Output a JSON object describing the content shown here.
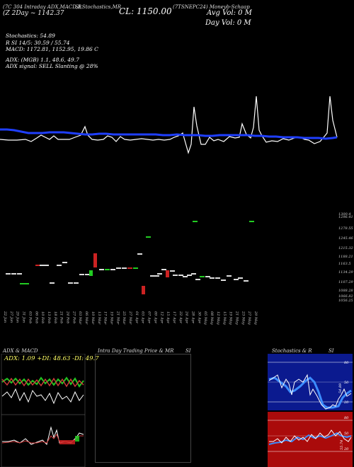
{
  "header": {
    "left_tags": "(7C 304 Intraday ADX,MACD,B",
    "mid_tags": "SI,Stochastics,MR",
    "right_tags": "(7TSNEPC24) Moneyb-Schaap",
    "chg": "(Z 2Day ~ 1142.37",
    "close_label": "CL: 1150.00",
    "avg_vol": "Avg Vol: 0   M",
    "day_vol": "Day Vol: 0   M"
  },
  "indicators": {
    "stochastics": "Stochastics: 54.89",
    "rsi": "R  SI 14/5: 30.59 / 55.74",
    "macd": "MACD: 1172.81,  1152.95,  19.86  C",
    "adx": "ADX:                    (MGB) 1.1,  48.6,  49.7",
    "signal": "ADX  signal: SELL  Slanting @ 28%"
  },
  "chart_data": [
    {
      "type": "line",
      "name": "main-volume-overview",
      "series": [
        {
          "name": "",
          "color": "#1f3fff",
          "values": [
            183,
            183,
            184,
            186,
            188,
            188,
            188,
            188,
            189,
            189,
            187,
            186,
            186,
            186,
            186,
            186,
            186,
            186,
            186,
            186,
            187,
            187,
            187,
            188,
            188,
            188,
            189,
            189,
            189,
            189,
            190,
            190,
            190,
            191,
            191,
            192,
            193,
            193,
            193,
            194,
            194,
            194,
            195,
            195,
            195,
            195,
            195,
            195,
            195,
            194
          ]
        },
        {
          "name": "",
          "color": "#ffffff",
          "values": [
            195,
            196,
            196,
            196,
            196,
            192,
            196,
            196,
            196,
            196,
            196,
            188,
            196,
            196,
            196,
            196,
            196,
            196,
            196,
            196,
            196,
            196,
            196,
            196,
            196,
            196,
            196,
            196,
            196,
            196,
            196,
            196,
            196,
            196,
            196,
            196,
            196,
            196,
            196,
            196,
            196,
            196,
            196,
            196,
            196,
            196,
            196,
            196,
            196,
            196
          ]
        }
      ]
    },
    {
      "type": "candlestick",
      "name": "price-candles",
      "ytick_labels": [
        "1300.4",
        "1296.41",
        "1278.55",
        "1245.46",
        "1215.32",
        "1188.21",
        "1163.5",
        "1134.29",
        "1107.29",
        "1088.28",
        "1066.82",
        "1056.25"
      ],
      "xtick_labels": [
        "22 Jan",
        "27 Jan",
        "29 Jan",
        "31 Jan",
        "03 Feb",
        "06 Feb",
        "10 Feb",
        "13 Feb",
        "18 Feb",
        "21 Feb",
        "24 Feb",
        "27 Feb",
        "03 Mar",
        "06 Mar",
        "10 Mar",
        "13 Mar",
        "17 Mar",
        "19 Mar",
        "21 Mar",
        "25 Mar",
        "27 Mar",
        "01 Apr",
        "03 Apr",
        "07 Apr",
        "09 Apr",
        "12 Apr",
        "15 Apr",
        "17 Apr",
        "22 Apr",
        "24 Apr",
        "28 Apr",
        "30 Apr",
        "05 May",
        "08 May",
        "12 May",
        "15 May",
        "19 May",
        "21 May",
        "23 May",
        "27 May",
        "29 May"
      ]
    }
  ],
  "panels": {
    "adx_title": "ADX  & MACD",
    "adx_readout": "ADX: 1.09  +DI: 48.63  -DI: 49.7",
    "mr_title": "Intra  Day Trading Price  & MR",
    "mr_si": "SI",
    "stoch_title": "Stochastics & R",
    "stoch_si": "SI",
    "stoch_ticks": [
      "80",
      "50",
      "20"
    ],
    "rsi_ticks": [
      "80",
      "50",
      "20"
    ],
    "stoch_value": "54.89",
    "rsi_value": "55.74"
  }
}
